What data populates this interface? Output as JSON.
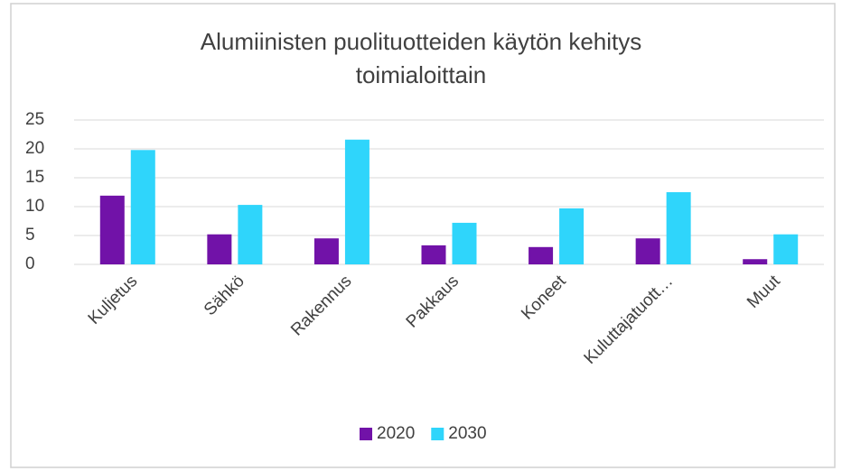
{
  "chart_data": {
    "type": "bar",
    "title": "Alumiinisten puolituotteiden käytön kehitys toimialoittain",
    "categories": [
      "Kuljetus",
      "Sähkö",
      "Rakennus",
      "Pakkaus",
      "Koneet",
      "Kuluttajatuott…",
      "Muut"
    ],
    "series": [
      {
        "name": "2020",
        "color": "#7112a8",
        "values": [
          11.9,
          5.2,
          4.5,
          3.3,
          3.0,
          4.5,
          0.9
        ]
      },
      {
        "name": "2030",
        "color": "#2fd5fb",
        "values": [
          19.8,
          10.3,
          21.6,
          7.2,
          9.7,
          12.5,
          5.2
        ]
      }
    ],
    "ylim": [
      0,
      25
    ],
    "yticks": [
      0,
      5,
      10,
      15,
      20,
      25
    ],
    "grid": true,
    "legend": "bottom"
  }
}
